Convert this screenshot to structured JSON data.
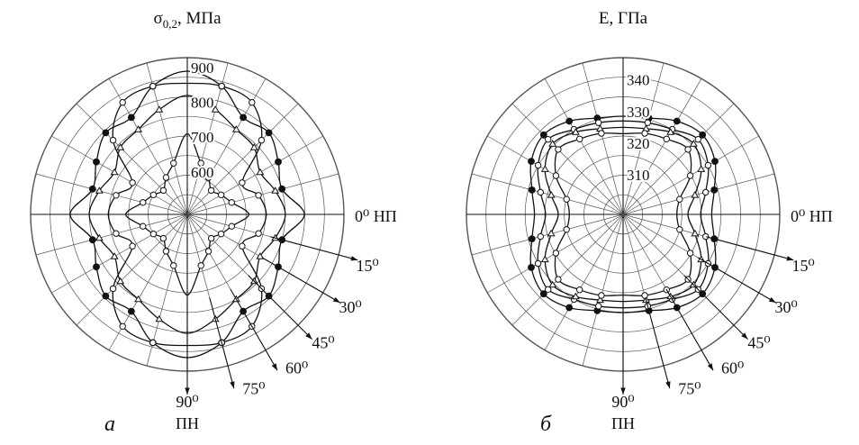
{
  "chart_data": [
    {
      "type": "polar",
      "panel_label": "а",
      "title": "σ0,2, МПа",
      "title_symbol": "σ",
      "title_subscript": "0,2",
      "title_unit": ", МПа",
      "radial_ticks": [
        "600",
        "700",
        "800",
        "900"
      ],
      "radial_range": [
        500,
        920
      ],
      "angle_labels": [
        {
          "key": "0",
          "deg": 0,
          "text": "0⁰ НП"
        },
        {
          "key": "15",
          "deg": 15,
          "text": "15⁰"
        },
        {
          "key": "30",
          "deg": 30,
          "text": "30⁰"
        },
        {
          "key": "45",
          "deg": 45,
          "text": "45⁰"
        },
        {
          "key": "60",
          "deg": 60,
          "text": "60⁰"
        },
        {
          "key": "75",
          "deg": 75,
          "text": "75⁰"
        },
        {
          "key": "90",
          "deg": 90,
          "text": "90⁰"
        }
      ],
      "bottom_label": "ПН",
      "angles_deg": [
        0,
        15,
        30,
        45,
        60,
        75,
        90
      ],
      "symmetry": "fourfold",
      "series": [
        {
          "marker": "filled-circle",
          "values": [
            815,
            760,
            780,
            810,
            800,
            860,
            890
          ]
        },
        {
          "marker": "open-circle",
          "values": [
            705,
            690,
            660,
            780,
            850,
            860,
            855
          ]
        },
        {
          "marker": "open-triangle",
          "values": [
            760,
            740,
            720,
            750,
            760,
            790,
            820
          ]
        },
        {
          "marker": "open-circle",
          "values": [
            655,
            610,
            590,
            575,
            600,
            630,
            710
          ]
        }
      ]
    },
    {
      "type": "polar",
      "panel_label": "б",
      "title": "E, ГПа",
      "radial_ticks": [
        "310",
        "320",
        "330",
        "340"
      ],
      "radial_range": [
        300,
        346
      ],
      "angle_labels": [
        {
          "key": "0",
          "deg": 0,
          "text": "0⁰ НП"
        },
        {
          "key": "15",
          "deg": 15,
          "text": "15⁰"
        },
        {
          "key": "30",
          "deg": 30,
          "text": "30⁰"
        },
        {
          "key": "45",
          "deg": 45,
          "text": "45⁰"
        },
        {
          "key": "60",
          "deg": 60,
          "text": "60⁰"
        },
        {
          "key": "75",
          "deg": 75,
          "text": "75⁰"
        },
        {
          "key": "90",
          "deg": 90,
          "text": "90⁰"
        }
      ],
      "bottom_label": "ПН",
      "angles_deg": [
        0,
        15,
        30,
        45,
        60,
        75,
        90
      ],
      "symmetry": "fourfold",
      "series": [
        {
          "marker": "filled-circle",
          "values": [
            325.5,
            327.3,
            331.0,
            333.0,
            331.5,
            329.0,
            328.5
          ]
        },
        {
          "marker": "open-circle",
          "values": [
            322.0,
            324.5,
            328.5,
            331.0,
            328.5,
            327.5,
            327.0
          ]
        },
        {
          "marker": "open-triangle",
          "values": [
            318.0,
            321.0,
            326.0,
            329.0,
            327.5,
            325.5,
            325.0
          ]
        },
        {
          "marker": "open-circle",
          "values": [
            314.5,
            316.0,
            322.0,
            326.5,
            325.0,
            324.0,
            323.0
          ]
        }
      ]
    }
  ]
}
